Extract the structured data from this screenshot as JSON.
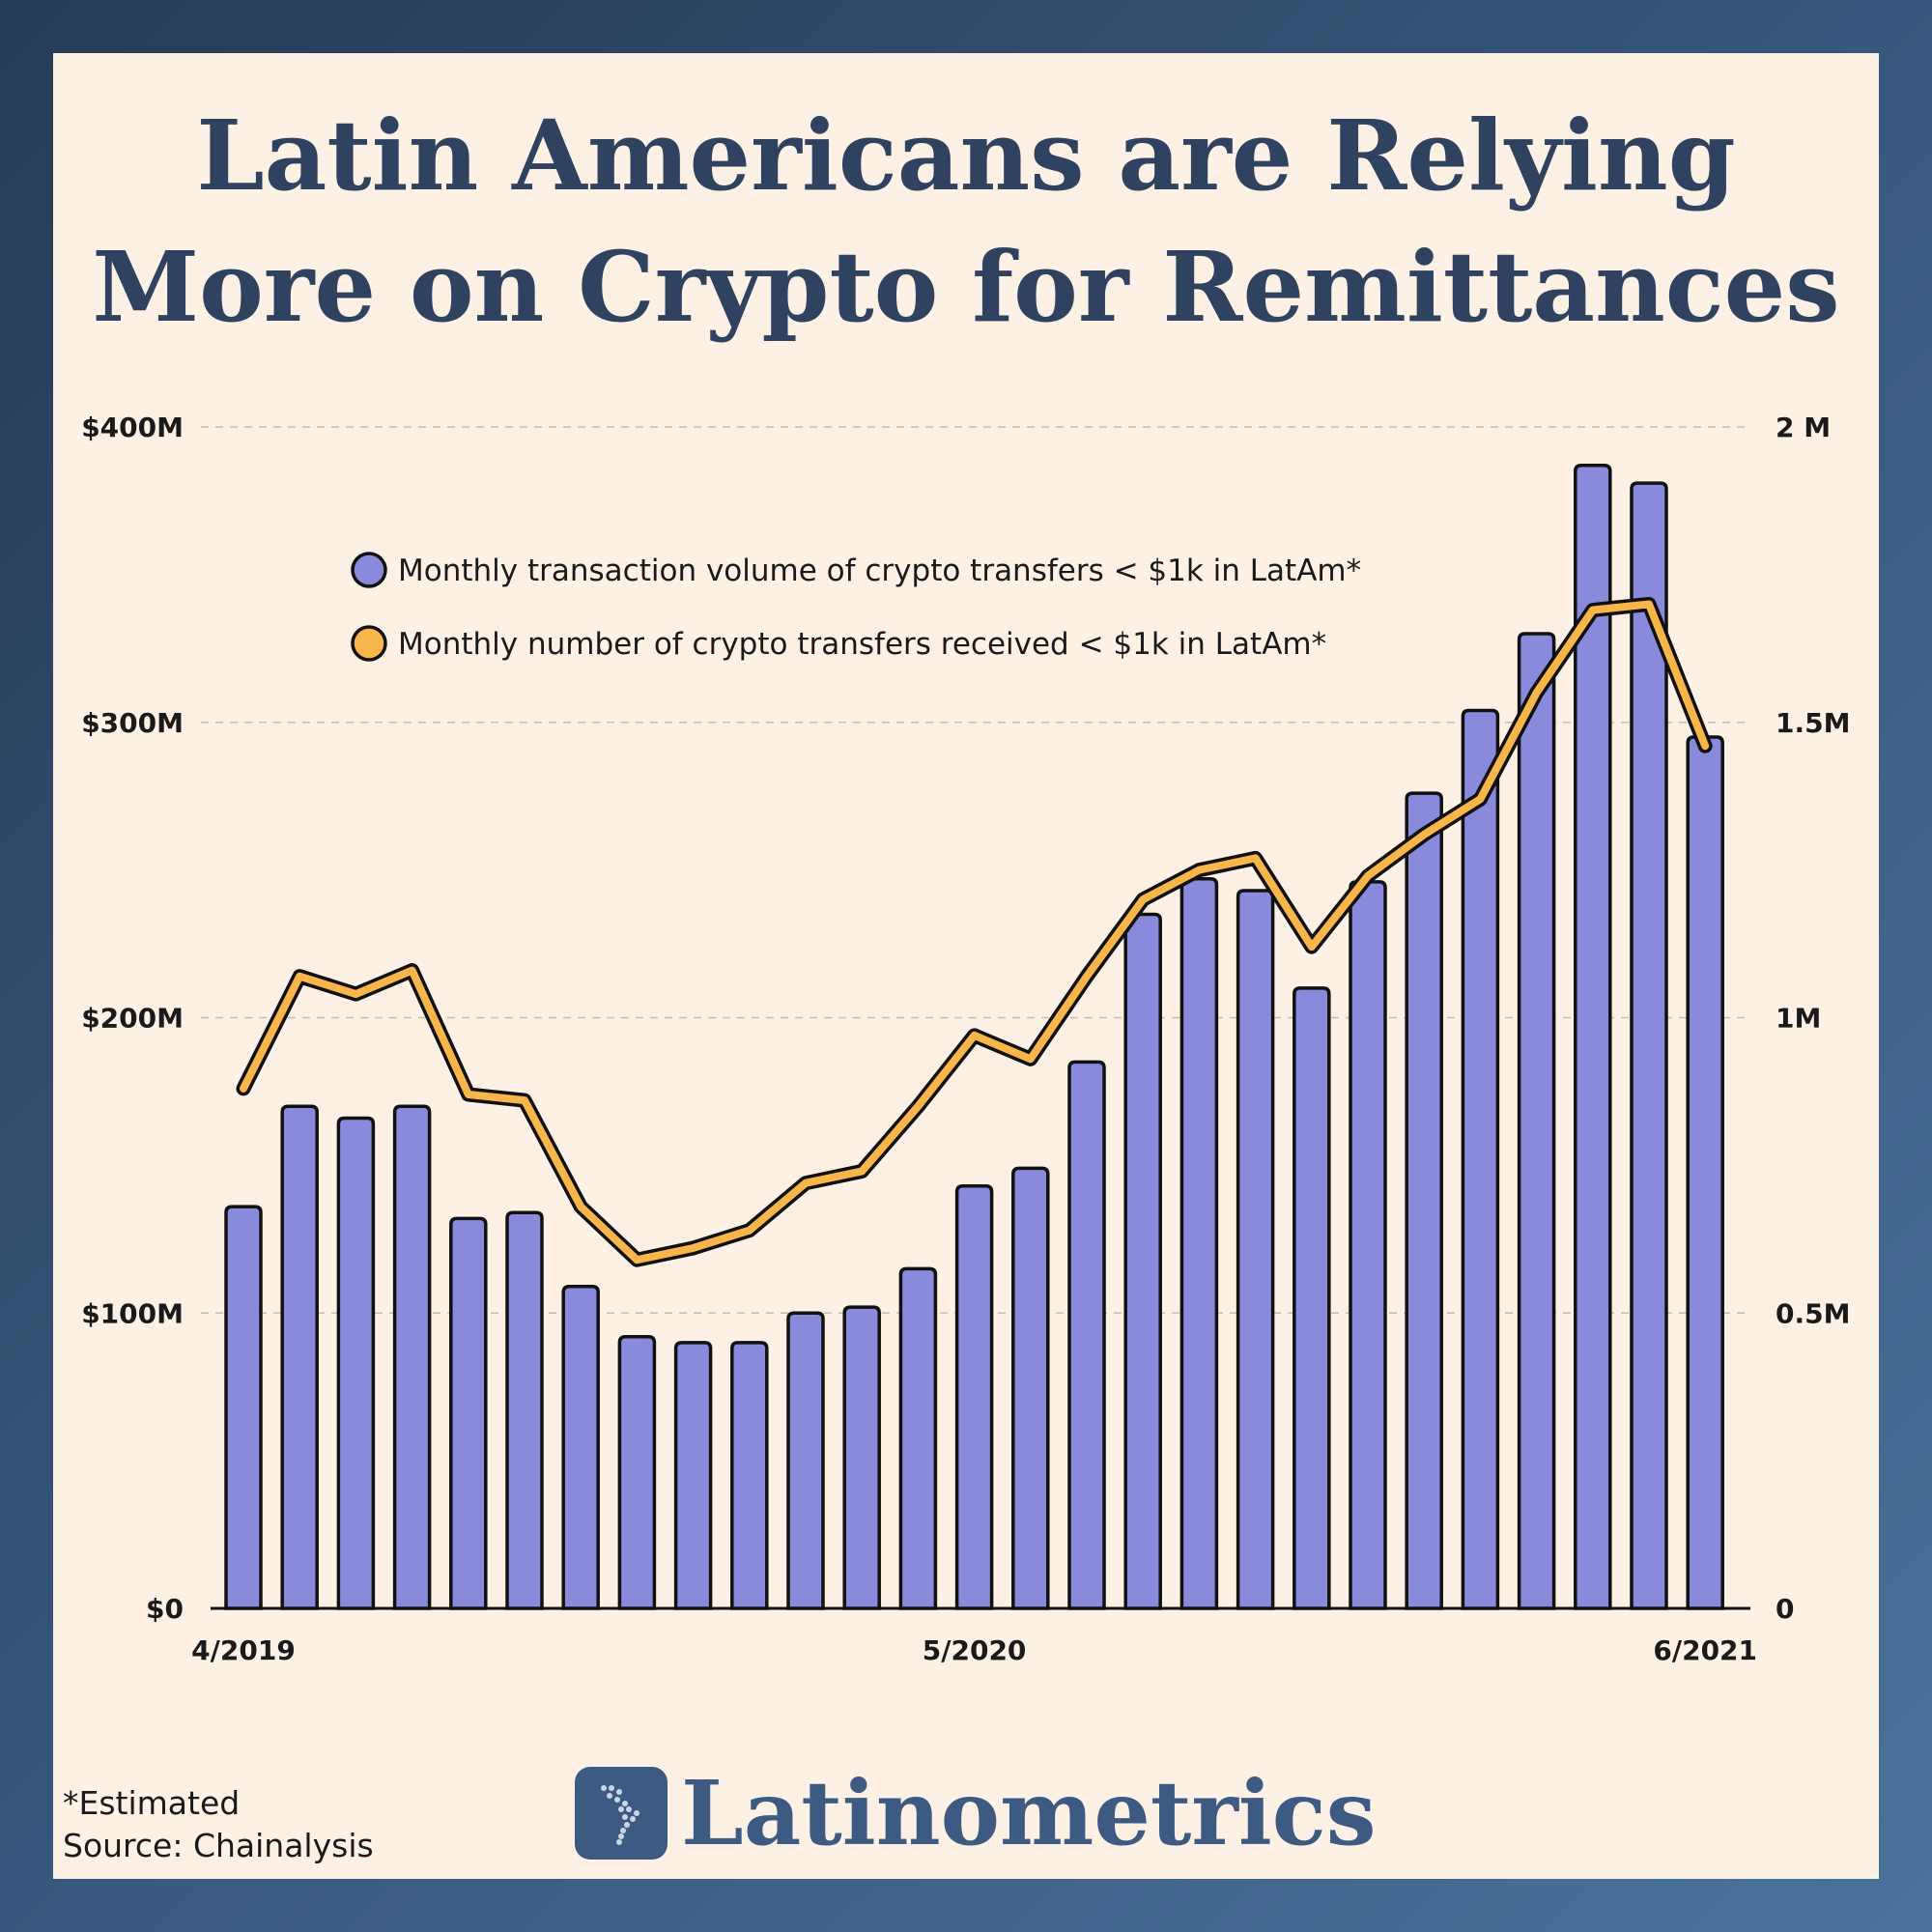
{
  "title": {
    "line1": "Latin Americans are Relying",
    "line2": "More on Crypto for Remittances"
  },
  "footnote": {
    "estimated": "*Estimated",
    "source": "Source: Chainalysis"
  },
  "brand": {
    "name": "Latinometrics",
    "icon": "latin-america-map-icon"
  },
  "colors": {
    "bar": "#8a8adc",
    "line": "#f7b54a",
    "title": "#2f4361",
    "brand": "#3d5a82"
  },
  "chart_data": {
    "type": "bar",
    "x_tick_labels": [
      "4/2019",
      "5/2020",
      "6/2021"
    ],
    "x_tick_positions": [
      0,
      13,
      26
    ],
    "y_left": {
      "ticks": [
        0,
        100,
        200,
        300,
        400
      ],
      "tick_labels": [
        "$0",
        "$100M",
        "$200M",
        "$300M",
        "$400M"
      ],
      "range": [
        0,
        400
      ]
    },
    "y_right": {
      "ticks": [
        0,
        0.5,
        1,
        1.5,
        2
      ],
      "tick_labels": [
        "0",
        "0.5M",
        "1M",
        "1.5M",
        "2 M"
      ],
      "range": [
        0,
        2
      ]
    },
    "grid": "horizontal dashed",
    "legend_position": "top-left",
    "series": [
      {
        "name": "Monthly transaction volume of crypto transfers < $1k in LatAm*",
        "type": "bar",
        "axis": "left",
        "values": [
          136,
          170,
          166,
          170,
          132,
          134,
          109,
          92,
          90,
          90,
          100,
          102,
          115,
          143,
          149,
          185,
          235,
          247,
          243,
          210,
          246,
          276,
          304,
          330,
          387,
          381,
          295
        ]
      },
      {
        "name": "Monthly number of crypto transfers received < $1k in LatAm*",
        "type": "line",
        "axis": "right",
        "values": [
          0.88,
          1.07,
          1.04,
          1.08,
          0.87,
          0.86,
          0.68,
          0.59,
          0.61,
          0.64,
          0.72,
          0.74,
          0.85,
          0.97,
          0.93,
          1.07,
          1.2,
          1.25,
          1.27,
          1.12,
          1.24,
          1.31,
          1.37,
          1.55,
          1.69,
          1.7,
          1.46
        ]
      }
    ]
  }
}
